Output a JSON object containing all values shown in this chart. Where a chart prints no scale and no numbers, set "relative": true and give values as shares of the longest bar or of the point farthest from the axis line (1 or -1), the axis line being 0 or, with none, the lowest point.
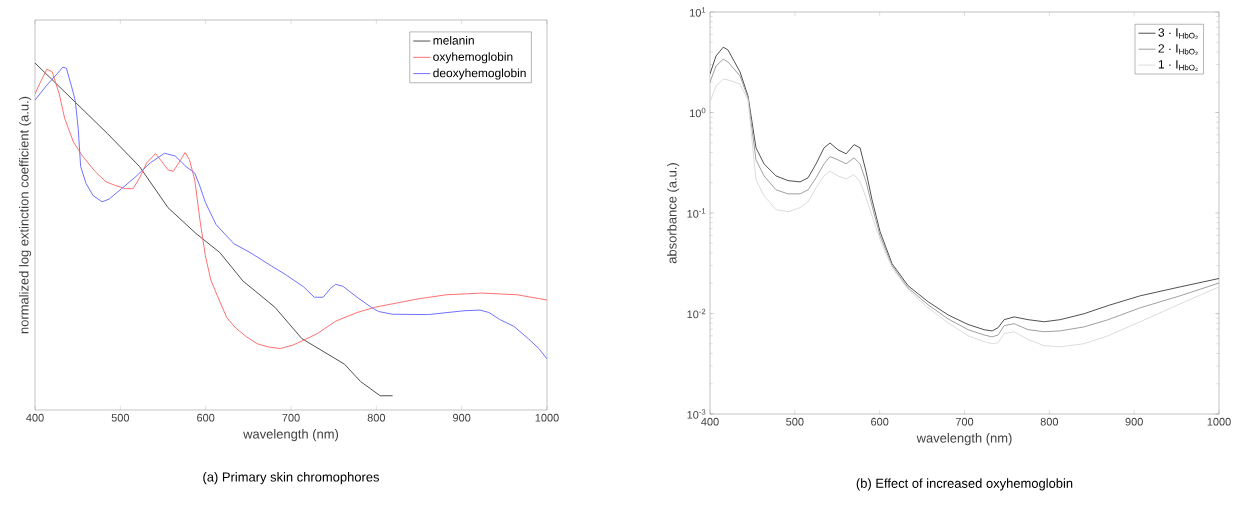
{
  "chart_data": [
    {
      "type": "line",
      "title": "(a) Primary skin chromophores",
      "xlabel": "wavelength (nm)",
      "ylabel": "normalized log extinction coefficient (a.u.)",
      "relative": true,
      "xlim": [
        400,
        1000
      ],
      "xticks": [
        400,
        500,
        600,
        700,
        800,
        900,
        1000
      ],
      "legend": "top right",
      "series": [
        {
          "name": "melanin",
          "color": "#505050",
          "x": [
            400,
            484.8,
            522.4,
            555.9,
            588.5,
            616.5,
            643.6,
            681.2,
            712.6,
            762.7,
            781.5,
            804.5,
            819.1
          ],
          "values": [
            1.0,
            0.797,
            0.702,
            0.583,
            0.509,
            0.454,
            0.372,
            0.296,
            0.206,
            0.132,
            0.082,
            0.041,
            0.041
          ]
        },
        {
          "name": "oxyhemoglobin",
          "color": "#ff7070",
          "x": [
            400,
            405.4,
            413.8,
            420.1,
            428.4,
            434.7,
            445.1,
            455.6,
            470.2,
            482.8,
            493.2,
            505.7,
            514.9,
            522.4,
            530.8,
            541.2,
            548.3,
            555.9,
            562.1,
            568.4,
            575.9,
            580.9,
            587.2,
            593.5,
            599.7,
            606.0,
            614.4,
            624.8,
            635.3,
            647.8,
            660.3,
            672.9,
            687.5,
            702.1,
            714.7,
            731.4,
            752.3,
            777.4,
            798.2,
            819.1,
            848.4,
            881.8,
            923.6,
            965.4,
            1000
          ],
          "values": [
            0.911,
            0.94,
            0.982,
            0.975,
            0.911,
            0.841,
            0.772,
            0.732,
            0.688,
            0.658,
            0.648,
            0.638,
            0.638,
            0.668,
            0.712,
            0.739,
            0.717,
            0.692,
            0.688,
            0.712,
            0.742,
            0.722,
            0.663,
            0.544,
            0.444,
            0.375,
            0.325,
            0.266,
            0.236,
            0.211,
            0.191,
            0.182,
            0.177,
            0.187,
            0.201,
            0.221,
            0.256,
            0.281,
            0.296,
            0.306,
            0.32,
            0.332,
            0.337,
            0.332,
            0.317
          ]
        },
        {
          "name": "deoxyhemoglobin",
          "color": "#7070ff",
          "x": [
            400,
            413.8,
            426.3,
            432.6,
            436.8,
            443.0,
            447.2,
            450.6,
            453.5,
            459.8,
            468.1,
            478.6,
            486.9,
            501.5,
            518.3,
            535.0,
            551.7,
            564.3,
            576.8,
            587.2,
            593.5,
            599.7,
            612.3,
            633.2,
            652.0,
            677.1,
            693.8,
            714.7,
            727.2,
            737.7,
            746.1,
            752.3,
            760.6,
            777.4,
            794.1,
            802.4,
            819.1,
            860.9,
            902.7,
            921.5,
            932.0,
            944.5,
            961.2,
            977.9,
            990.5,
            1000
          ],
          "values": [
            0.893,
            0.936,
            0.97,
            0.988,
            0.985,
            0.931,
            0.891,
            0.812,
            0.702,
            0.653,
            0.618,
            0.6,
            0.608,
            0.638,
            0.673,
            0.712,
            0.74,
            0.732,
            0.702,
            0.683,
            0.643,
            0.598,
            0.534,
            0.479,
            0.454,
            0.415,
            0.39,
            0.355,
            0.325,
            0.325,
            0.35,
            0.362,
            0.357,
            0.325,
            0.296,
            0.284,
            0.276,
            0.275,
            0.286,
            0.288,
            0.281,
            0.261,
            0.241,
            0.206,
            0.177,
            0.147
          ]
        }
      ]
    },
    {
      "type": "line",
      "title": "(b) Effect of increased oxyhemoglobin",
      "xlabel": "wavelength (nm)",
      "ylabel": "absorbance (a.u.)",
      "log": "y",
      "xlim": [
        400,
        1000
      ],
      "xticks": [
        400,
        500,
        600,
        700,
        800,
        900,
        1000
      ],
      "ylim": [
        0.001,
        10
      ],
      "yticks": [
        {
          "value": 0.001,
          "label": "10$^{-3}$"
        },
        {
          "value": 0.01,
          "label": "10$^{-2}$"
        },
        {
          "value": 0.1,
          "label": "10$^{-1}$"
        },
        {
          "value": 1,
          "label": "10$^{0}$"
        },
        {
          "value": 10,
          "label": "10$^{1}$"
        }
      ],
      "legend": "top right",
      "x": [
        400,
        407.1,
        415.6,
        421.2,
        435.4,
        444.8,
        454.2,
        463.7,
        477.8,
        492.0,
        506.1,
        515.6,
        525.0,
        534.4,
        541.5,
        550.9,
        560.4,
        569.8,
        576.9,
        584.0,
        591.0,
        600.5,
        614.6,
        633.5,
        657.1,
        680.7,
        704.2,
        723.1,
        732.5,
        739.6,
        746.7,
        758.5,
        775.0,
        793.9,
        812.7,
        841.0,
        869.3,
        907.1,
        954.2,
        1000
      ],
      "series": [
        {
          "name": "3 · I$_{HbO₂}$",
          "color": "#505050",
          "values": [
            2.42,
            3.65,
            4.47,
            4.19,
            2.53,
            1.46,
            0.445,
            0.308,
            0.234,
            0.21,
            0.204,
            0.224,
            0.308,
            0.445,
            0.497,
            0.425,
            0.388,
            0.479,
            0.445,
            0.257,
            0.135,
            0.065,
            0.0313,
            0.0189,
            0.0131,
            0.00968,
            0.00778,
            0.0069,
            0.00671,
            0.00723,
            0.00868,
            0.00925,
            0.00868,
            0.00828,
            0.00868,
            0.00995,
            0.012,
            0.015,
            0.0184,
            0.0223
          ]
        },
        {
          "name": "2 · I$_{HbO₂}$",
          "color": "#a0a0a0",
          "values": [
            2.01,
            2.9,
            3.4,
            3.18,
            2.31,
            1.4,
            0.338,
            0.234,
            0.17,
            0.155,
            0.155,
            0.17,
            0.224,
            0.308,
            0.364,
            0.338,
            0.308,
            0.354,
            0.308,
            0.204,
            0.118,
            0.0593,
            0.0299,
            0.018,
            0.0122,
            0.00883,
            0.0069,
            0.00612,
            0.00585,
            0.00612,
            0.00757,
            0.00792,
            0.0069,
            0.00659,
            0.00671,
            0.00736,
            0.00868,
            0.0114,
            0.015,
            0.0201
          ]
        },
        {
          "name": "1 · I$_{HbO₂}$",
          "color": "#dcdcdc",
          "values": [
            1.27,
            1.84,
            2.15,
            2.11,
            1.92,
            1.33,
            0.214,
            0.148,
            0.108,
            0.103,
            0.113,
            0.129,
            0.178,
            0.234,
            0.261,
            0.234,
            0.218,
            0.241,
            0.204,
            0.142,
            0.0938,
            0.0542,
            0.0285,
            0.0173,
            0.0114,
            0.00807,
            0.00601,
            0.00525,
            0.00501,
            0.00511,
            0.0063,
            0.00659,
            0.0055,
            0.00479,
            0.00466,
            0.00501,
            0.00601,
            0.00828,
            0.0125,
            0.0184
          ]
        }
      ]
    }
  ]
}
